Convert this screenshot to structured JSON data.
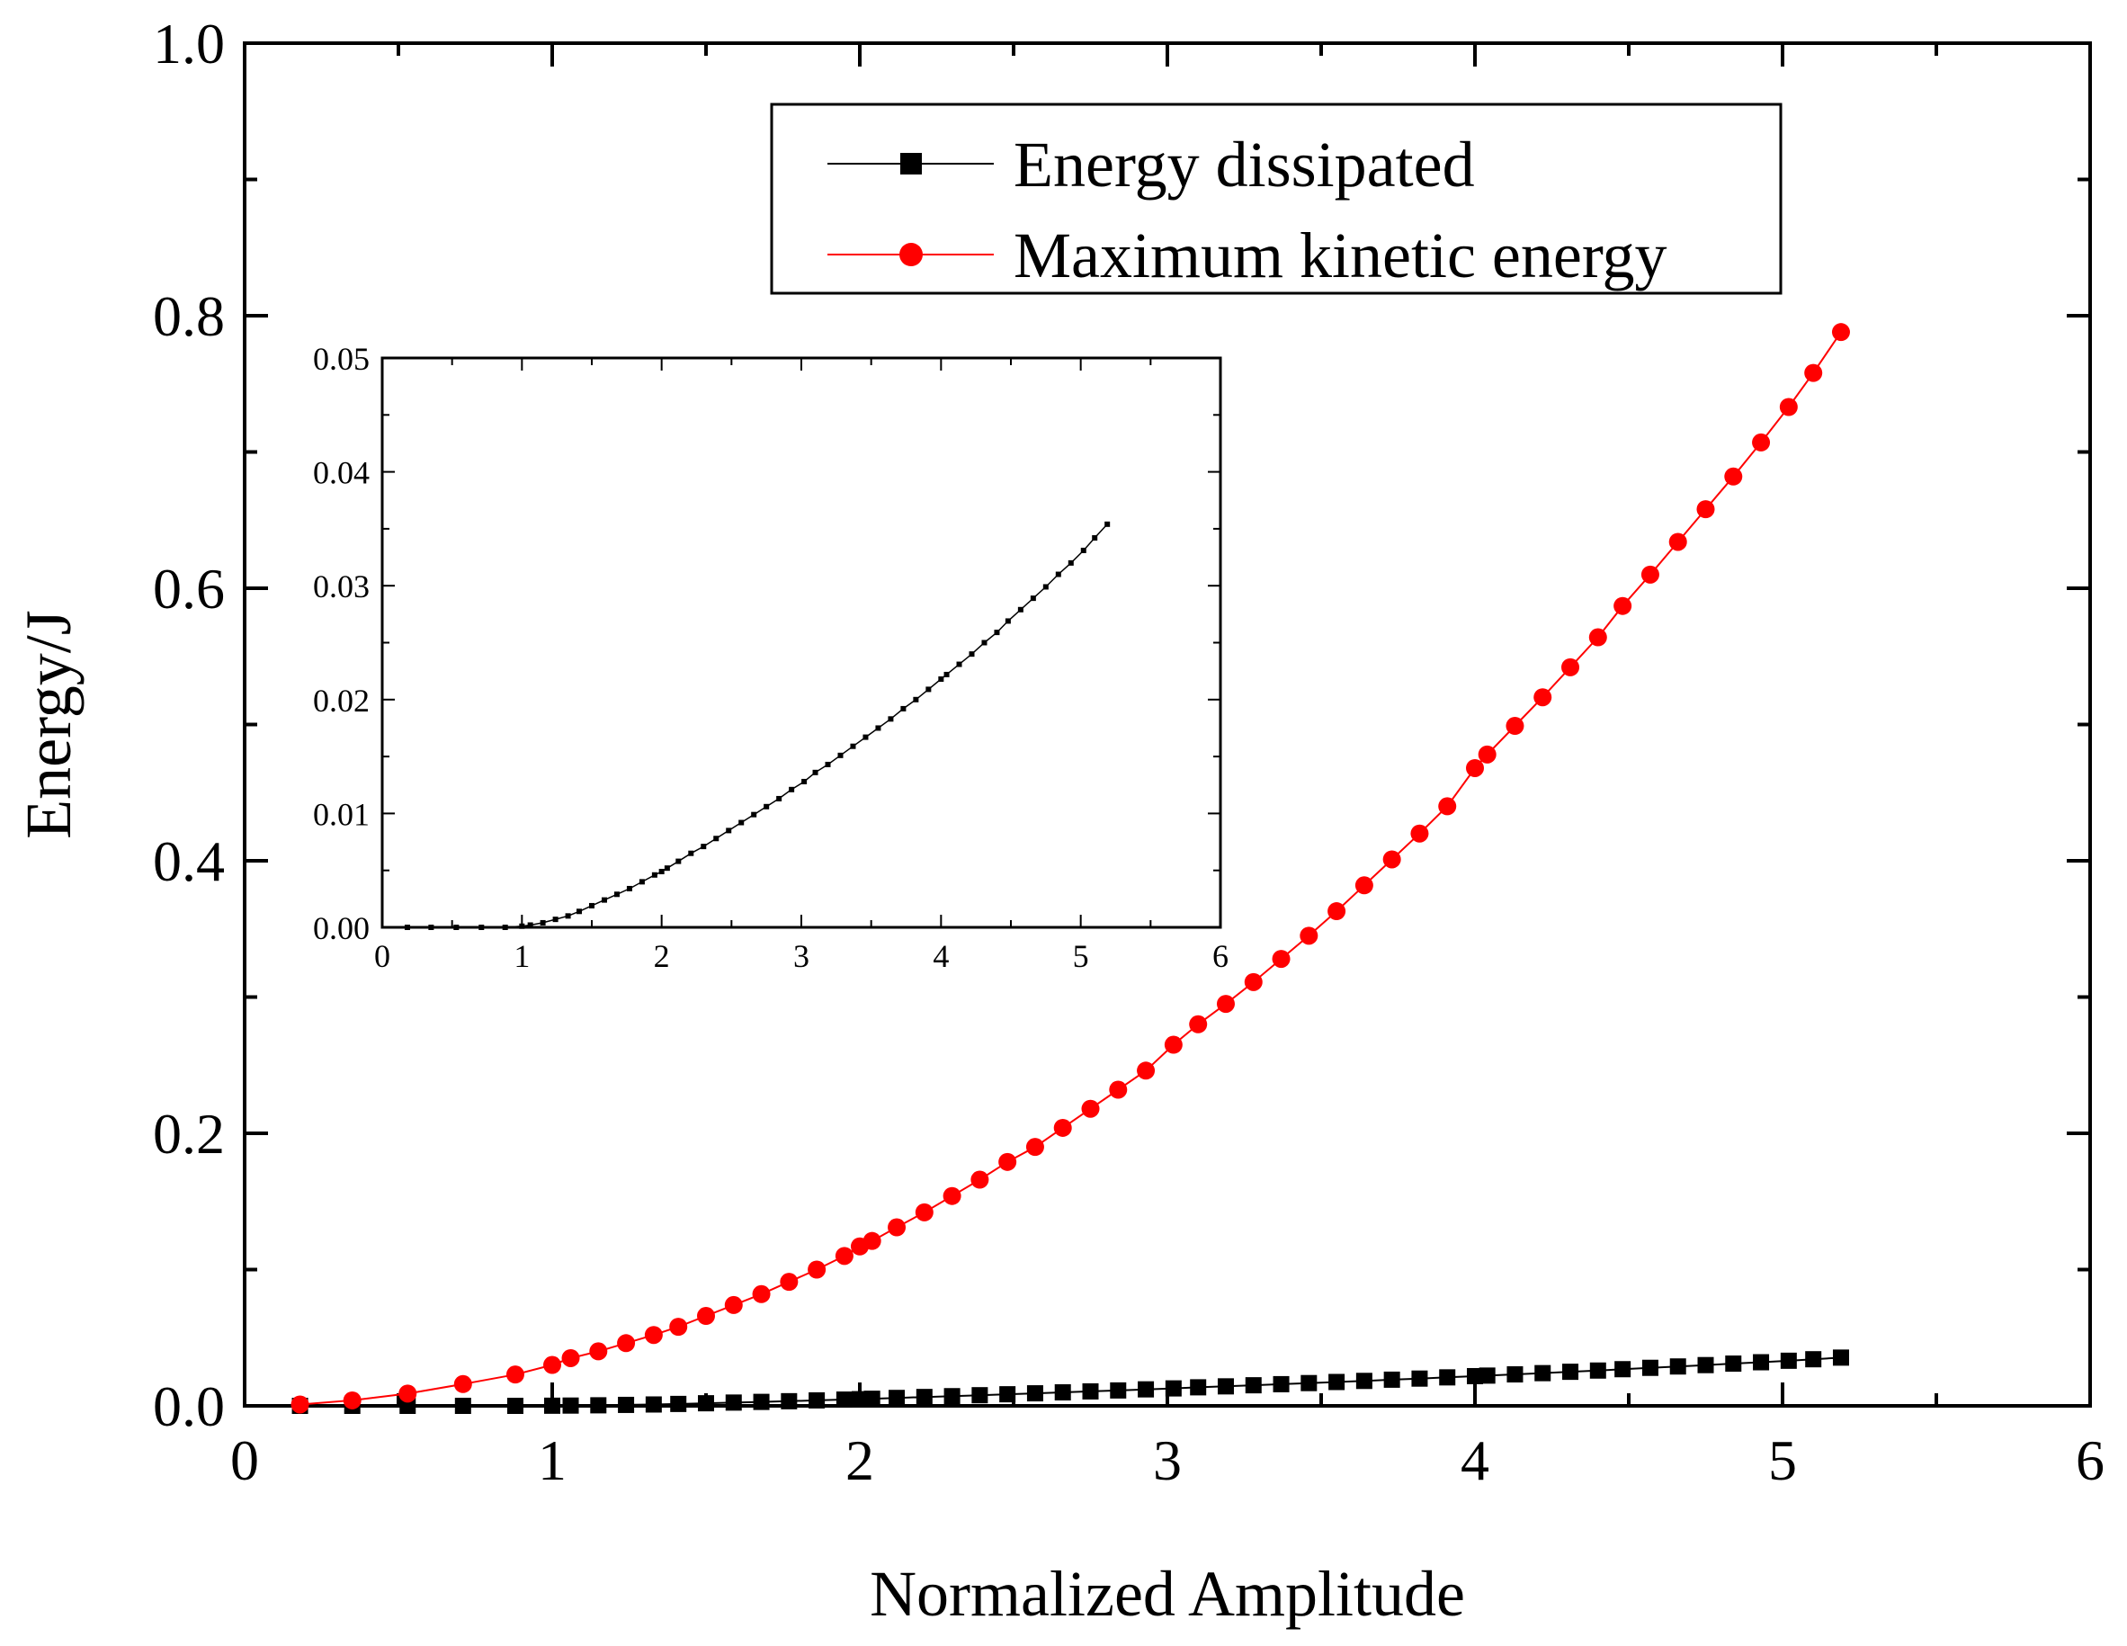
{
  "chart_data": [
    {
      "type": "line",
      "role": "main",
      "xlabel": "Normalized Amplitude",
      "ylabel": "Energy/J",
      "xlim": [
        0,
        6
      ],
      "ylim": [
        0,
        1
      ],
      "x_ticks": [
        0,
        1,
        2,
        3,
        4,
        5,
        6
      ],
      "x_tick_labels": [
        "0",
        "1",
        "2",
        "3",
        "4",
        "5",
        "6"
      ],
      "y_ticks": [
        0,
        0.2,
        0.4,
        0.6,
        0.8,
        1.0
      ],
      "y_tick_labels": [
        "0.0",
        "0.2",
        "0.4",
        "0.6",
        "0.8",
        "1.0"
      ],
      "legend_position": "top-right",
      "series": [
        {
          "name": "Energy dissipated",
          "color": "#000000",
          "marker": "square",
          "x": [
            0.18,
            0.35,
            0.53,
            0.71,
            0.88,
            1.0,
            1.06,
            1.15,
            1.24,
            1.33,
            1.41,
            1.5,
            1.59,
            1.68,
            1.77,
            1.86,
            1.95,
            2.0,
            2.04,
            2.12,
            2.21,
            2.3,
            2.39,
            2.48,
            2.57,
            2.66,
            2.75,
            2.84,
            2.93,
            3.02,
            3.1,
            3.19,
            3.28,
            3.37,
            3.46,
            3.55,
            3.64,
            3.73,
            3.82,
            3.91,
            4.0,
            4.04,
            4.13,
            4.22,
            4.31,
            4.4,
            4.48,
            4.57,
            4.66,
            4.75,
            4.84,
            4.93,
            5.02,
            5.1,
            5.19
          ],
          "y": [
            0.0,
            0.0,
            0.0,
            0.0,
            0.0,
            0.0001,
            0.0002,
            0.0004,
            0.0007,
            0.001,
            0.0014,
            0.0019,
            0.0024,
            0.0029,
            0.0034,
            0.004,
            0.0046,
            0.0049,
            0.0052,
            0.0058,
            0.0065,
            0.0071,
            0.0078,
            0.0085,
            0.0092,
            0.0099,
            0.0106,
            0.0113,
            0.0121,
            0.0128,
            0.0136,
            0.0143,
            0.0151,
            0.0159,
            0.0167,
            0.0175,
            0.0183,
            0.0192,
            0.02,
            0.0209,
            0.0218,
            0.0222,
            0.0231,
            0.024,
            0.025,
            0.0259,
            0.0269,
            0.0279,
            0.0289,
            0.0299,
            0.031,
            0.032,
            0.0331,
            0.0342,
            0.0354
          ]
        },
        {
          "name": "Maximum kinetic energy",
          "color": "#ff0000",
          "marker": "circle",
          "x": [
            0.18,
            0.35,
            0.53,
            0.71,
            0.88,
            1.0,
            1.06,
            1.15,
            1.24,
            1.33,
            1.41,
            1.5,
            1.59,
            1.68,
            1.77,
            1.86,
            1.95,
            2.0,
            2.04,
            2.12,
            2.21,
            2.3,
            2.39,
            2.48,
            2.57,
            2.66,
            2.75,
            2.84,
            2.93,
            3.02,
            3.1,
            3.19,
            3.28,
            3.37,
            3.46,
            3.55,
            3.64,
            3.73,
            3.82,
            3.91,
            4.0,
            4.04,
            4.13,
            4.22,
            4.31,
            4.4,
            4.48,
            4.57,
            4.66,
            4.75,
            4.84,
            4.93,
            5.02,
            5.1,
            5.19
          ],
          "y": [
            0.001,
            0.004,
            0.009,
            0.016,
            0.023,
            0.03,
            0.035,
            0.04,
            0.046,
            0.052,
            0.058,
            0.066,
            0.074,
            0.082,
            0.091,
            0.1,
            0.11,
            0.117,
            0.121,
            0.131,
            0.142,
            0.154,
            0.166,
            0.179,
            0.19,
            0.204,
            0.218,
            0.232,
            0.246,
            0.265,
            0.28,
            0.295,
            0.311,
            0.328,
            0.345,
            0.363,
            0.382,
            0.401,
            0.42,
            0.44,
            0.468,
            0.478,
            0.499,
            0.52,
            0.542,
            0.564,
            0.587,
            0.61,
            0.634,
            0.658,
            0.682,
            0.707,
            0.733,
            0.758,
            0.788
          ]
        }
      ]
    },
    {
      "type": "line",
      "role": "inset",
      "xlabel": "",
      "ylabel": "",
      "xlim": [
        0,
        6
      ],
      "ylim": [
        0,
        0.05
      ],
      "x_ticks": [
        0,
        1,
        2,
        3,
        4,
        5,
        6
      ],
      "x_tick_labels": [
        "0",
        "1",
        "2",
        "3",
        "4",
        "5",
        "6"
      ],
      "y_ticks": [
        0,
        0.01,
        0.02,
        0.03,
        0.04,
        0.05
      ],
      "y_tick_labels": [
        "0.00",
        "0.01",
        "0.02",
        "0.03",
        "0.04",
        "0.05"
      ],
      "series": [
        {
          "name": "Energy dissipated",
          "color": "#000000",
          "marker": "square",
          "x": [
            0.18,
            0.35,
            0.53,
            0.71,
            0.88,
            1.0,
            1.06,
            1.15,
            1.24,
            1.33,
            1.41,
            1.5,
            1.59,
            1.68,
            1.77,
            1.86,
            1.95,
            2.0,
            2.04,
            2.12,
            2.21,
            2.3,
            2.39,
            2.48,
            2.57,
            2.66,
            2.75,
            2.84,
            2.93,
            3.02,
            3.1,
            3.19,
            3.28,
            3.37,
            3.46,
            3.55,
            3.64,
            3.73,
            3.82,
            3.91,
            4.0,
            4.04,
            4.13,
            4.22,
            4.31,
            4.4,
            4.48,
            4.57,
            4.66,
            4.75,
            4.84,
            4.93,
            5.02,
            5.1,
            5.19
          ],
          "y": [
            0.0,
            0.0,
            0.0,
            0.0,
            0.0,
            0.0001,
            0.0002,
            0.0004,
            0.0007,
            0.001,
            0.0014,
            0.0019,
            0.0024,
            0.0029,
            0.0034,
            0.004,
            0.0046,
            0.0049,
            0.0052,
            0.0058,
            0.0065,
            0.0071,
            0.0078,
            0.0085,
            0.0092,
            0.0099,
            0.0106,
            0.0113,
            0.0121,
            0.0128,
            0.0136,
            0.0143,
            0.0151,
            0.0159,
            0.0167,
            0.0175,
            0.0183,
            0.0192,
            0.02,
            0.0209,
            0.0218,
            0.0222,
            0.0231,
            0.024,
            0.025,
            0.0259,
            0.0269,
            0.0279,
            0.0289,
            0.0299,
            0.031,
            0.032,
            0.0331,
            0.0342,
            0.0354
          ]
        }
      ]
    }
  ]
}
